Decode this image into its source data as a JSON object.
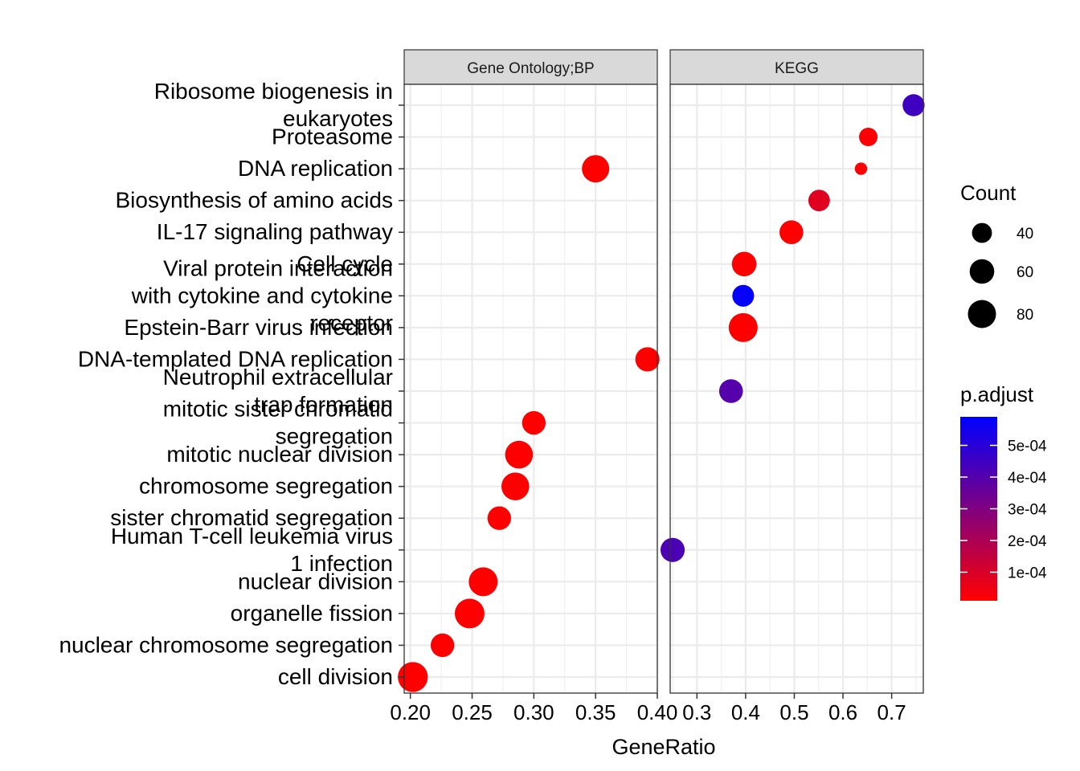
{
  "chart_data": {
    "type": "scatter",
    "xlabel": "GeneRatio",
    "categories": [
      "Ribosome biogenesis in\neukaryotes",
      "Proteasome",
      "DNA replication",
      "Biosynthesis of amino acids",
      "IL-17 signaling pathway",
      "Cell cycle",
      "Viral protein interaction\nwith cytokine and cytokine\nreceptor",
      "Epstein-Barr virus infection",
      "DNA-templated DNA replication",
      "Neutrophil extracellular\ntrap formation",
      "mitotic sister chromatid\nsegregation",
      "mitotic nuclear division",
      "chromosome segregation",
      "sister chromatid segregation",
      "Human T-cell leukemia virus\n1 infection",
      "nuclear division",
      "organelle fission",
      "nuclear chromosome segregation",
      "cell division"
    ],
    "facets": [
      {
        "name": "Gene Ontology;BP",
        "xlim": [
          0.195,
          0.4
        ],
        "xticks": [
          0.2,
          0.25,
          0.3,
          0.35,
          0.4
        ],
        "xtick_labels": [
          "0.20",
          "0.25",
          "0.30",
          "0.35",
          "0.40"
        ],
        "points": [
          {
            "category": "DNA replication",
            "x": 0.35,
            "count": 75,
            "p_adjust": 1e-05
          },
          {
            "category": "DNA-templated DNA replication",
            "x": 0.392,
            "count": 58,
            "p_adjust": 1e-05
          },
          {
            "category": "mitotic sister chromatid\nsegregation",
            "x": 0.3,
            "count": 55,
            "p_adjust": 1e-05
          },
          {
            "category": "mitotic nuclear division",
            "x": 0.288,
            "count": 78,
            "p_adjust": 1e-05
          },
          {
            "category": "chromosome segregation",
            "x": 0.285,
            "count": 78,
            "p_adjust": 1e-05
          },
          {
            "category": "sister chromatid segregation",
            "x": 0.272,
            "count": 55,
            "p_adjust": 1e-05
          },
          {
            "category": "nuclear division",
            "x": 0.259,
            "count": 85,
            "p_adjust": 1e-05
          },
          {
            "category": "organelle fission",
            "x": 0.248,
            "count": 90,
            "p_adjust": 1e-05
          },
          {
            "category": "nuclear chromosome segregation",
            "x": 0.226,
            "count": 55,
            "p_adjust": 1e-05
          },
          {
            "category": "cell division",
            "x": 0.202,
            "count": 92,
            "p_adjust": 1e-05
          }
        ]
      },
      {
        "name": "KEGG",
        "xlim": [
          0.245,
          0.765
        ],
        "xticks": [
          0.3,
          0.4,
          0.5,
          0.6,
          0.7
        ],
        "xtick_labels": [
          "0.3",
          "0.4",
          "0.5",
          "0.6",
          "0.7"
        ],
        "points": [
          {
            "category": "Ribosome biogenesis in\neukaryotes",
            "x": 0.745,
            "count": 48,
            "p_adjust": 0.00045
          },
          {
            "category": "Proteasome",
            "x": 0.652,
            "count": 35,
            "p_adjust": 2e-05
          },
          {
            "category": "DNA replication",
            "x": 0.637,
            "count": 22,
            "p_adjust": 1e-05
          },
          {
            "category": "Biosynthesis of amino acids",
            "x": 0.551,
            "count": 46,
            "p_adjust": 8e-05
          },
          {
            "category": "IL-17 signaling pathway",
            "x": 0.494,
            "count": 56,
            "p_adjust": 1e-05
          },
          {
            "category": "Cell cycle",
            "x": 0.397,
            "count": 60,
            "p_adjust": 1e-05
          },
          {
            "category": "Viral protein interaction\nwith cytokine and cytokine\nreceptor",
            "x": 0.395,
            "count": 47,
            "p_adjust": 0.00058
          },
          {
            "category": "Epstein-Barr virus infection",
            "x": 0.395,
            "count": 85,
            "p_adjust": 1e-05
          },
          {
            "category": "Neutrophil extracellular\ntrap formation",
            "x": 0.37,
            "count": 56,
            "p_adjust": 0.0004
          },
          {
            "category": "Human T-cell leukemia virus\n1 infection",
            "x": 0.25,
            "count": 58,
            "p_adjust": 0.00042
          }
        ]
      }
    ],
    "legend": {
      "size_title": "Count",
      "size_breaks": [
        40,
        60,
        80
      ],
      "size_labels": [
        "40",
        "60",
        "80"
      ],
      "color_title": "p.adjust",
      "color_breaks": [
        0.0001,
        0.0002,
        0.0003,
        0.0004,
        0.0005
      ],
      "color_labels": [
        "1e-04",
        "2e-04",
        "3e-04",
        "4e-04",
        "5e-04"
      ],
      "color_range": [
        1e-05,
        0.00059
      ],
      "color_low": "#ff0000",
      "color_high": "#0000ff"
    },
    "grid": true
  }
}
